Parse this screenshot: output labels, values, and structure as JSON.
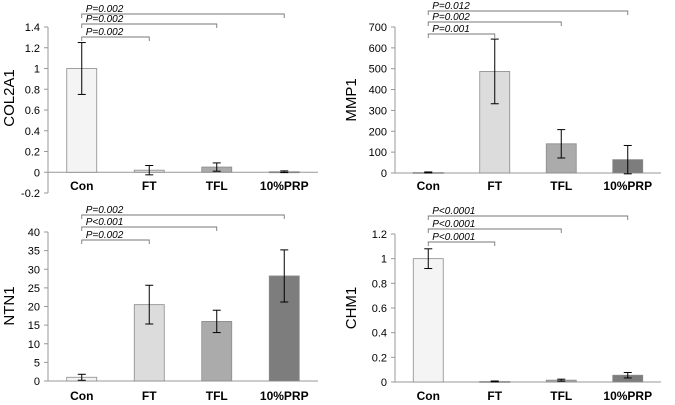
{
  "chart_data": [
    {
      "type": "bar",
      "ylabel": "COL2A1",
      "categories": [
        "Con",
        "FT",
        "TFL",
        "10%PRP"
      ],
      "values": [
        1.0,
        0.02,
        0.05,
        0.005
      ],
      "errors": [
        0.25,
        0.045,
        0.04,
        0.008
      ],
      "colors": [
        "#f4f4f4",
        "#dcdcdc",
        "#ababab",
        "#7d7d7d"
      ],
      "ylim": [
        -0.2,
        1.4
      ],
      "yticks": [
        -0.2,
        0,
        0.2,
        0.4,
        0.6,
        0.8,
        1,
        1.2,
        1.4
      ],
      "ytick_labels": [
        "-0.2",
        "0",
        "0.2",
        "0.4",
        "0.6",
        "0.8",
        "1",
        "1.2",
        "1.4"
      ],
      "annotations": [
        {
          "from": 0,
          "to": 1,
          "label": "P=0.002"
        },
        {
          "from": 0,
          "to": 2,
          "label": "P=0.002"
        },
        {
          "from": 0,
          "to": 3,
          "label": "P=0.002"
        }
      ]
    },
    {
      "type": "bar",
      "ylabel": "MMP1",
      "categories": [
        "Con",
        "FT",
        "TFL",
        "10%PRP"
      ],
      "values": [
        3,
        487,
        140,
        64
      ],
      "errors": [
        2,
        155,
        68,
        68
      ],
      "colors": [
        "#f4f4f4",
        "#dcdcdc",
        "#ababab",
        "#7d7d7d"
      ],
      "ylim": [
        0,
        700
      ],
      "yticks": [
        0,
        100,
        200,
        300,
        400,
        500,
        600,
        700
      ],
      "ytick_labels": [
        "0",
        "100",
        "200",
        "300",
        "400",
        "500",
        "600",
        "700"
      ],
      "annotations": [
        {
          "from": 0,
          "to": 1,
          "label": "P=0.001"
        },
        {
          "from": 0,
          "to": 2,
          "label": "P=0.002"
        },
        {
          "from": 0,
          "to": 3,
          "label": "P=0.012"
        }
      ]
    },
    {
      "type": "bar",
      "ylabel": "NTN1",
      "categories": [
        "Con",
        "FT",
        "TFL",
        "10%PRP"
      ],
      "values": [
        1,
        20.5,
        16,
        28.2
      ],
      "errors": [
        0.8,
        5.2,
        3,
        7
      ],
      "colors": [
        "#f4f4f4",
        "#dcdcdc",
        "#ababab",
        "#7d7d7d"
      ],
      "ylim": [
        0,
        40
      ],
      "yticks": [
        0,
        5,
        10,
        15,
        20,
        25,
        30,
        35,
        40
      ],
      "ytick_labels": [
        "0",
        "5",
        "10",
        "15",
        "20",
        "25",
        "30",
        "35",
        "40"
      ],
      "annotations": [
        {
          "from": 0,
          "to": 1,
          "label": "P=0.002"
        },
        {
          "from": 0,
          "to": 2,
          "label": "P<0.001"
        },
        {
          "from": 0,
          "to": 3,
          "label": "P=0.002"
        }
      ]
    },
    {
      "type": "bar",
      "ylabel": "CHM1",
      "categories": [
        "Con",
        "FT",
        "TFL",
        "10%PRP"
      ],
      "values": [
        1.0,
        0.005,
        0.015,
        0.055
      ],
      "errors": [
        0.08,
        0.003,
        0.008,
        0.022
      ],
      "colors": [
        "#f4f4f4",
        "#dcdcdc",
        "#ababab",
        "#7d7d7d"
      ],
      "ylim": [
        0,
        1.2
      ],
      "yticks": [
        0,
        0.2,
        0.4,
        0.6,
        0.8,
        1,
        1.2
      ],
      "ytick_labels": [
        "0",
        "0.2",
        "0.4",
        "0.6",
        "0.8",
        "1",
        "1.2"
      ],
      "annotations": [
        {
          "from": 0,
          "to": 1,
          "label": "P<0.0001"
        },
        {
          "from": 0,
          "to": 2,
          "label": "P<0.0001"
        },
        {
          "from": 0,
          "to": 3,
          "label": "P<0.0001"
        }
      ]
    }
  ]
}
